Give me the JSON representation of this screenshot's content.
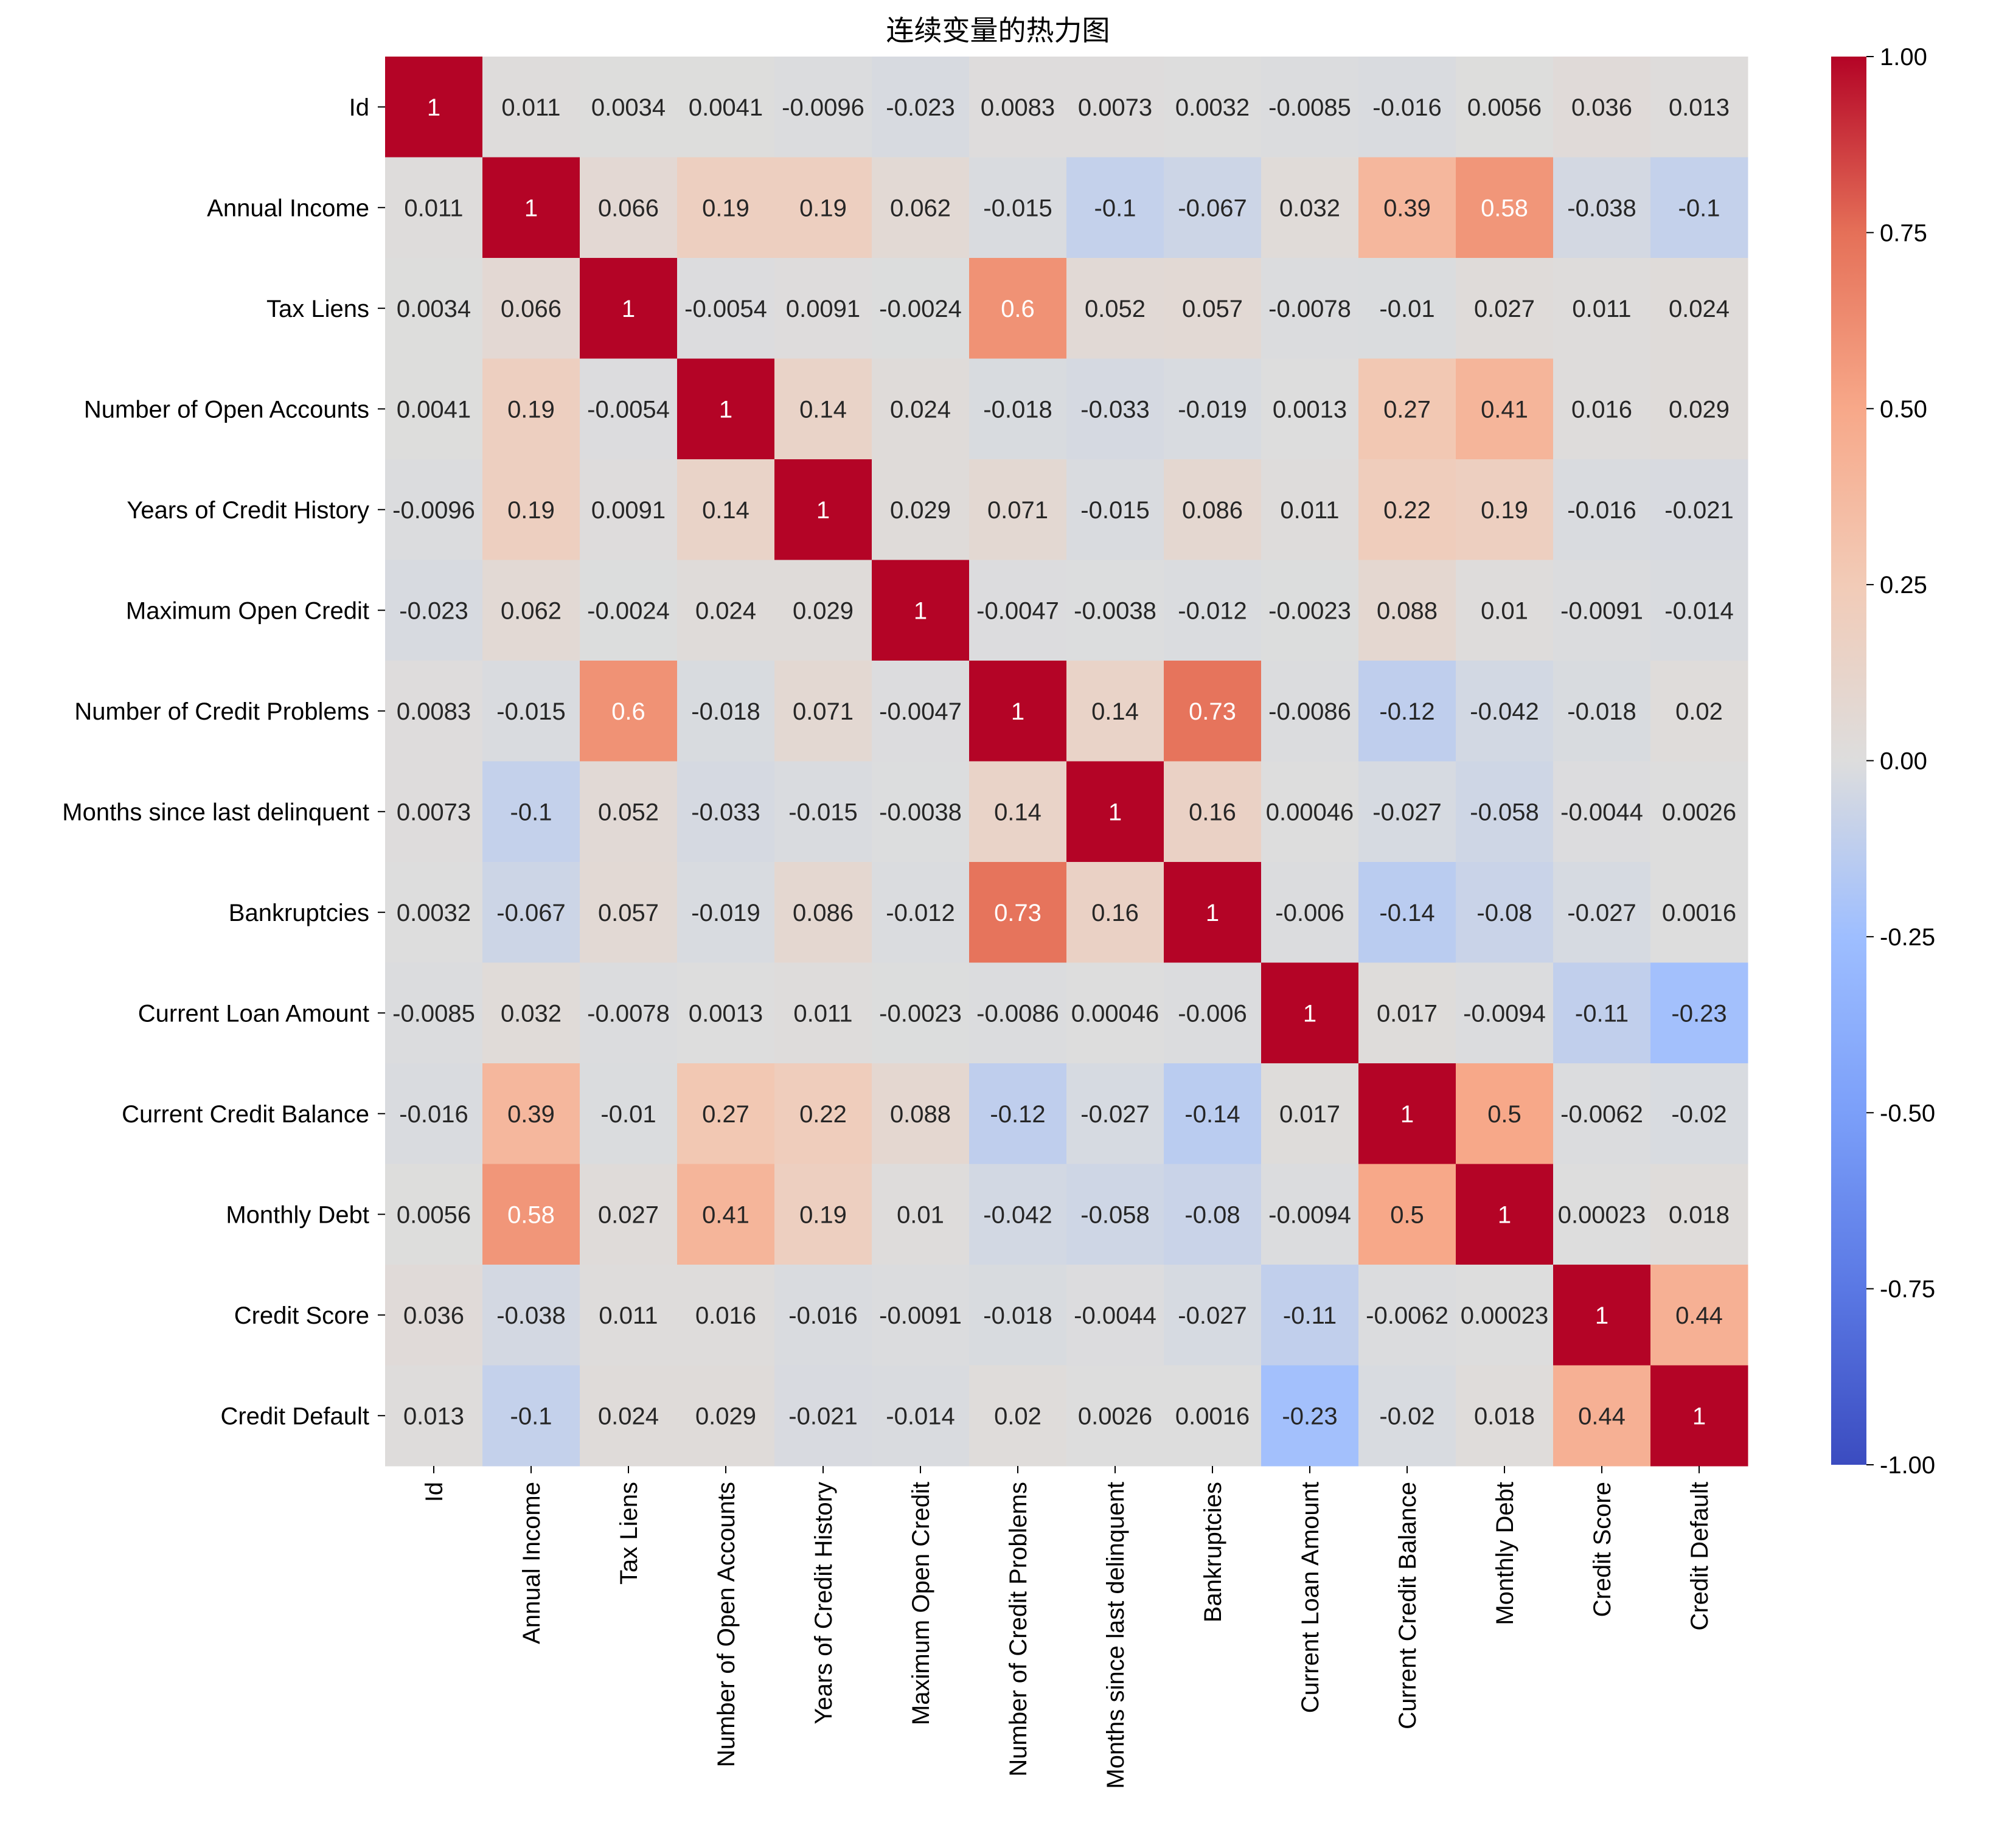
{
  "chart_data": {
    "type": "heatmap",
    "title": "连续变量的热力图",
    "colormap": "coolwarm",
    "colormap_endpoints": {
      "low": "#3b4cc0",
      "mid": "#dddddd",
      "high": "#b40426"
    },
    "vmin": -1.0,
    "vmax": 1.0,
    "colorbar_ticks": [
      "1.00",
      "0.75",
      "0.50",
      "0.25",
      "0.00",
      "-0.25",
      "-0.50",
      "-0.75",
      "-1.00"
    ],
    "labels": [
      "Id",
      "Annual Income",
      "Tax Liens",
      "Number of Open Accounts",
      "Years of Credit History",
      "Maximum Open Credit",
      "Number of Credit Problems",
      "Months since last delinquent",
      "Bankruptcies",
      "Current Loan Amount",
      "Current Credit Balance",
      "Monthly Debt",
      "Credit Score",
      "Credit Default"
    ],
    "annotations": [
      [
        "1",
        "0.011",
        "0.0034",
        "0.0041",
        "-0.0096",
        "-0.023",
        "0.0083",
        "0.0073",
        "0.0032",
        "-0.0085",
        "-0.016",
        "0.0056",
        "0.036",
        "0.013"
      ],
      [
        "0.011",
        "1",
        "0.066",
        "0.19",
        "0.19",
        "0.062",
        "-0.015",
        "-0.1",
        "-0.067",
        "0.032",
        "0.39",
        "0.58",
        "-0.038",
        "-0.1"
      ],
      [
        "0.0034",
        "0.066",
        "1",
        "-0.0054",
        "0.0091",
        "-0.0024",
        "0.6",
        "0.052",
        "0.057",
        "-0.0078",
        "-0.01",
        "0.027",
        "0.011",
        "0.024"
      ],
      [
        "0.0041",
        "0.19",
        "-0.0054",
        "1",
        "0.14",
        "0.024",
        "-0.018",
        "-0.033",
        "-0.019",
        "0.0013",
        "0.27",
        "0.41",
        "0.016",
        "0.029"
      ],
      [
        "-0.0096",
        "0.19",
        "0.0091",
        "0.14",
        "1",
        "0.029",
        "0.071",
        "-0.015",
        "0.086",
        "0.011",
        "0.22",
        "0.19",
        "-0.016",
        "-0.021"
      ],
      [
        "-0.023",
        "0.062",
        "-0.0024",
        "0.024",
        "0.029",
        "1",
        "-0.0047",
        "-0.0038",
        "-0.012",
        "-0.0023",
        "0.088",
        "0.01",
        "-0.0091",
        "-0.014"
      ],
      [
        "0.0083",
        "-0.015",
        "0.6",
        "-0.018",
        "0.071",
        "-0.0047",
        "1",
        "0.14",
        "0.73",
        "-0.0086",
        "-0.12",
        "-0.042",
        "-0.018",
        "0.02"
      ],
      [
        "0.0073",
        "-0.1",
        "0.052",
        "-0.033",
        "-0.015",
        "-0.0038",
        "0.14",
        "1",
        "0.16",
        "0.00046",
        "-0.027",
        "-0.058",
        "-0.0044",
        "0.0026"
      ],
      [
        "0.0032",
        "-0.067",
        "0.057",
        "-0.019",
        "0.086",
        "-0.012",
        "0.73",
        "0.16",
        "1",
        "-0.006",
        "-0.14",
        "-0.08",
        "-0.027",
        "0.0016"
      ],
      [
        "-0.0085",
        "0.032",
        "-0.0078",
        "0.0013",
        "0.011",
        "-0.0023",
        "-0.0086",
        "0.00046",
        "-0.006",
        "1",
        "0.017",
        "-0.0094",
        "-0.11",
        "-0.23"
      ],
      [
        "-0.016",
        "0.39",
        "-0.01",
        "0.27",
        "0.22",
        "0.088",
        "-0.12",
        "-0.027",
        "-0.14",
        "0.017",
        "1",
        "0.5",
        "-0.0062",
        "-0.02"
      ],
      [
        "0.0056",
        "0.58",
        "0.027",
        "0.41",
        "0.19",
        "0.01",
        "-0.042",
        "-0.058",
        "-0.08",
        "-0.0094",
        "0.5",
        "1",
        "0.00023",
        "0.018"
      ],
      [
        "0.036",
        "-0.038",
        "0.011",
        "0.016",
        "-0.016",
        "-0.0091",
        "-0.018",
        "-0.0044",
        "-0.027",
        "-0.11",
        "-0.0062",
        "0.00023",
        "1",
        "0.44"
      ],
      [
        "0.013",
        "-0.1",
        "0.024",
        "0.029",
        "-0.021",
        "-0.014",
        "0.02",
        "0.0026",
        "0.0016",
        "-0.23",
        "-0.02",
        "0.018",
        "0.44",
        "1"
      ]
    ]
  }
}
